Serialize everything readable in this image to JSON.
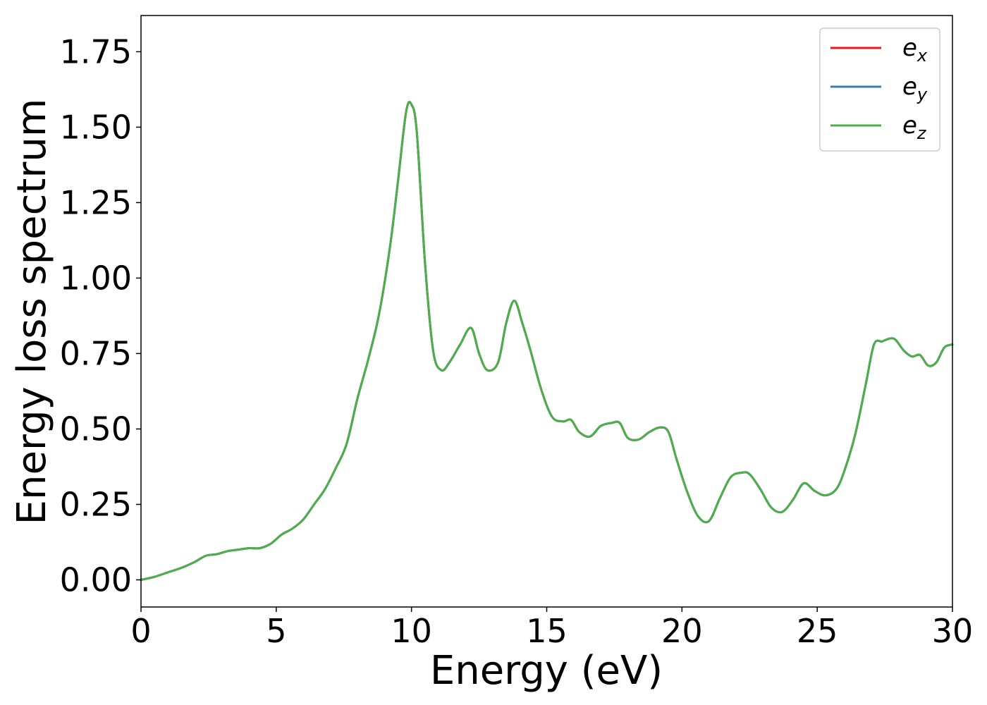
{
  "chart_data": {
    "type": "line",
    "xlabel": "Energy (eV)",
    "ylabel": "Energy loss spectrum",
    "xlim": [
      0,
      30
    ],
    "ylim": [
      -0.09,
      1.87
    ],
    "xticks": [
      0,
      5,
      10,
      15,
      20,
      25,
      30
    ],
    "xtick_labels": [
      "0",
      "5",
      "10",
      "15",
      "20",
      "25",
      "30"
    ],
    "yticks": [
      0.0,
      0.25,
      0.5,
      0.75,
      1.0,
      1.25,
      1.5,
      1.75
    ],
    "ytick_labels": [
      "0.00",
      "0.25",
      "0.50",
      "0.75",
      "1.00",
      "1.25",
      "1.50",
      "1.75"
    ],
    "grid": false,
    "legend_position": "upper right",
    "x": [
      0.0,
      0.5,
      1.0,
      1.5,
      2.0,
      2.4,
      2.8,
      3.2,
      3.6,
      4.0,
      4.4,
      4.8,
      5.2,
      5.6,
      6.0,
      6.4,
      6.8,
      7.2,
      7.6,
      8.0,
      8.4,
      8.8,
      9.2,
      9.5,
      9.8,
      10.0,
      10.2,
      10.5,
      10.8,
      11.1,
      11.4,
      11.8,
      12.2,
      12.5,
      12.8,
      13.2,
      13.5,
      13.8,
      14.1,
      14.4,
      14.8,
      15.2,
      15.6,
      15.9,
      16.2,
      16.6,
      17.0,
      17.4,
      17.7,
      18.0,
      18.4,
      18.8,
      19.2,
      19.5,
      19.8,
      20.2,
      20.6,
      21.0,
      21.4,
      21.8,
      22.2,
      22.5,
      22.9,
      23.3,
      23.7,
      24.1,
      24.5,
      24.9,
      25.3,
      25.7,
      26.0,
      26.4,
      26.8,
      27.1,
      27.4,
      27.7,
      27.9,
      28.2,
      28.5,
      28.8,
      29.1,
      29.4,
      29.7,
      30.0
    ],
    "series": [
      {
        "name": "e_x",
        "color": "#e41a1c",
        "values": [
          0.0,
          0.01,
          0.025,
          0.04,
          0.06,
          0.08,
          0.085,
          0.095,
          0.1,
          0.105,
          0.105,
          0.12,
          0.15,
          0.17,
          0.2,
          0.25,
          0.3,
          0.37,
          0.45,
          0.6,
          0.73,
          0.88,
          1.1,
          1.32,
          1.55,
          1.575,
          1.48,
          1.05,
          0.76,
          0.695,
          0.72,
          0.78,
          0.835,
          0.75,
          0.695,
          0.72,
          0.85,
          0.925,
          0.85,
          0.76,
          0.63,
          0.54,
          0.525,
          0.53,
          0.49,
          0.475,
          0.51,
          0.52,
          0.52,
          0.47,
          0.465,
          0.49,
          0.505,
          0.49,
          0.4,
          0.29,
          0.21,
          0.195,
          0.27,
          0.34,
          0.355,
          0.35,
          0.3,
          0.24,
          0.225,
          0.265,
          0.32,
          0.295,
          0.28,
          0.3,
          0.36,
          0.48,
          0.65,
          0.78,
          0.79,
          0.8,
          0.795,
          0.76,
          0.74,
          0.745,
          0.71,
          0.72,
          0.77,
          0.78
        ]
      },
      {
        "name": "e_y",
        "color": "#377eb8",
        "values": [
          0.0,
          0.01,
          0.025,
          0.04,
          0.06,
          0.08,
          0.085,
          0.095,
          0.1,
          0.105,
          0.105,
          0.12,
          0.15,
          0.17,
          0.2,
          0.25,
          0.3,
          0.37,
          0.45,
          0.6,
          0.73,
          0.88,
          1.1,
          1.32,
          1.55,
          1.575,
          1.48,
          1.05,
          0.76,
          0.695,
          0.72,
          0.78,
          0.835,
          0.75,
          0.695,
          0.72,
          0.85,
          0.925,
          0.85,
          0.76,
          0.63,
          0.54,
          0.525,
          0.53,
          0.49,
          0.475,
          0.51,
          0.52,
          0.52,
          0.47,
          0.465,
          0.49,
          0.505,
          0.49,
          0.4,
          0.29,
          0.21,
          0.195,
          0.27,
          0.34,
          0.355,
          0.35,
          0.3,
          0.24,
          0.225,
          0.265,
          0.32,
          0.295,
          0.28,
          0.3,
          0.36,
          0.48,
          0.65,
          0.78,
          0.79,
          0.8,
          0.795,
          0.76,
          0.74,
          0.745,
          0.71,
          0.72,
          0.77,
          0.78
        ]
      },
      {
        "name": "e_z",
        "color": "#4daf4a",
        "values": [
          0.0,
          0.01,
          0.025,
          0.04,
          0.06,
          0.08,
          0.085,
          0.095,
          0.1,
          0.105,
          0.105,
          0.12,
          0.15,
          0.17,
          0.2,
          0.25,
          0.3,
          0.37,
          0.45,
          0.6,
          0.73,
          0.88,
          1.1,
          1.32,
          1.55,
          1.575,
          1.48,
          1.05,
          0.76,
          0.695,
          0.72,
          0.78,
          0.835,
          0.75,
          0.695,
          0.72,
          0.85,
          0.925,
          0.85,
          0.76,
          0.63,
          0.54,
          0.525,
          0.53,
          0.49,
          0.475,
          0.51,
          0.52,
          0.52,
          0.47,
          0.465,
          0.49,
          0.505,
          0.49,
          0.4,
          0.29,
          0.21,
          0.195,
          0.27,
          0.34,
          0.355,
          0.35,
          0.3,
          0.24,
          0.225,
          0.265,
          0.32,
          0.295,
          0.28,
          0.3,
          0.36,
          0.48,
          0.65,
          0.78,
          0.79,
          0.8,
          0.795,
          0.76,
          0.74,
          0.745,
          0.71,
          0.72,
          0.77,
          0.78
        ]
      }
    ],
    "legend": [
      {
        "base": "e",
        "sub": "x",
        "color": "#e41a1c"
      },
      {
        "base": "e",
        "sub": "y",
        "color": "#377eb8"
      },
      {
        "base": "e",
        "sub": "z",
        "color": "#4daf4a"
      }
    ]
  }
}
